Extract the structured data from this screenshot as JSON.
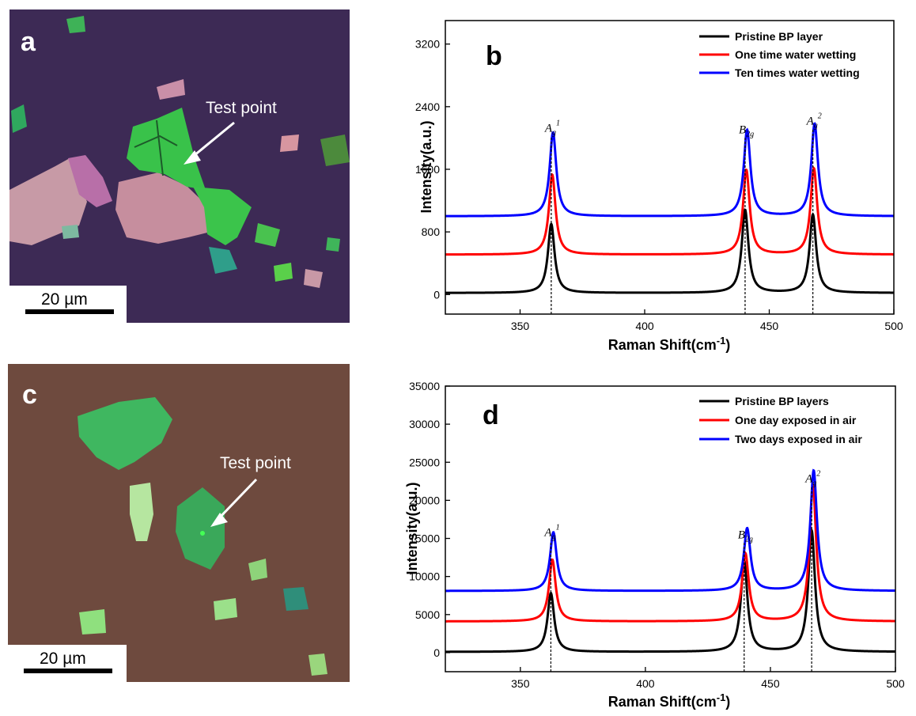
{
  "panels": {
    "a": {
      "letter": "a",
      "annotation": "Test point",
      "scale_bar": "20 µm",
      "colors": {
        "background": "#3d2a55",
        "flake_green": "#39c24a",
        "flake_pink": "#c79aa6"
      }
    },
    "c": {
      "letter": "c",
      "annotation": "Test point",
      "scale_bar": "20 µm",
      "colors": {
        "background": "#6e4a3e",
        "flake_green": "#3fb760",
        "flake_light": "#b6e6a0"
      }
    }
  },
  "chart_data": [
    {
      "panel": "b",
      "type": "line",
      "xlabel": "Raman Shift(cm",
      "xlabel_sup": "-1",
      "xlabel_close": ")",
      "ylabel": "Intensity(a.u.)",
      "xlim": [
        320,
        500
      ],
      "ylim": [
        -250,
        3500
      ],
      "x_ticks": [
        350,
        400,
        450,
        500
      ],
      "y_ticks": [
        0,
        800,
        1600,
        2400,
        3200
      ],
      "legend": "top-right",
      "peak_width": 1.6,
      "peak_labels": [
        {
          "main": "A",
          "sub": "g",
          "sup": "1",
          "x": 362.5
        },
        {
          "main": "B",
          "sub": "2g",
          "sup": "",
          "x": 440.3
        },
        {
          "main": "A",
          "sub": "g",
          "sup": "2",
          "x": 467.5
        }
      ],
      "series": [
        {
          "name": "Pristine BP layer",
          "color": "#000000",
          "baseline": 20,
          "peaks": [
            {
              "x": 362.5,
              "h": 880
            },
            {
              "x": 440.3,
              "h": 1060
            },
            {
              "x": 467.5,
              "h": 1000
            }
          ]
        },
        {
          "name": "One time water wetting",
          "color": "#ff0000",
          "baseline": 510,
          "peaks": [
            {
              "x": 362.9,
              "h": 1020
            },
            {
              "x": 440.8,
              "h": 1080
            },
            {
              "x": 467.9,
              "h": 1100
            }
          ]
        },
        {
          "name": "Ten times water wetting",
          "color": "#0000ff",
          "baseline": 1000,
          "peaks": [
            {
              "x": 363.2,
              "h": 1070
            },
            {
              "x": 441.1,
              "h": 1100
            },
            {
              "x": 468.2,
              "h": 1180
            }
          ]
        }
      ]
    },
    {
      "panel": "d",
      "type": "line",
      "xlabel": "Raman Shift(cm",
      "xlabel_sup": "-1",
      "xlabel_close": ")",
      "ylabel": "Intensity(a.u.)",
      "xlim": [
        320,
        500
      ],
      "ylim": [
        -2500,
        35000
      ],
      "x_ticks": [
        350,
        400,
        450,
        500
      ],
      "y_ticks": [
        0,
        5000,
        10000,
        15000,
        20000,
        25000,
        30000,
        35000
      ],
      "legend": "top-right",
      "peak_width": 1.6,
      "peak_labels": [
        {
          "main": "A",
          "sub": "g",
          "sup": "1",
          "x": 362.2
        },
        {
          "main": "B",
          "sub": "2g",
          "sup": "",
          "x": 439.5
        },
        {
          "main": "A",
          "sub": "g",
          "sup": "2",
          "x": 466.5
        }
      ],
      "series": [
        {
          "name": "Pristine BP layers",
          "color": "#000000",
          "baseline": 100,
          "peaks": [
            {
              "x": 362.2,
              "h": 7700
            },
            {
              "x": 439.5,
              "h": 11900
            },
            {
              "x": 466.5,
              "h": 15900
            }
          ]
        },
        {
          "name": "One day exposed in air",
          "color": "#ff0000",
          "baseline": 4100,
          "peaks": [
            {
              "x": 362.8,
              "h": 8100
            },
            {
              "x": 440.0,
              "h": 8900
            },
            {
              "x": 467.0,
              "h": 17900
            }
          ]
        },
        {
          "name": "Two days exposed in air",
          "color": "#0000ff",
          "baseline": 8100,
          "peaks": [
            {
              "x": 363.2,
              "h": 7700
            },
            {
              "x": 440.7,
              "h": 8200
            },
            {
              "x": 467.3,
              "h": 15800
            }
          ]
        }
      ]
    }
  ]
}
